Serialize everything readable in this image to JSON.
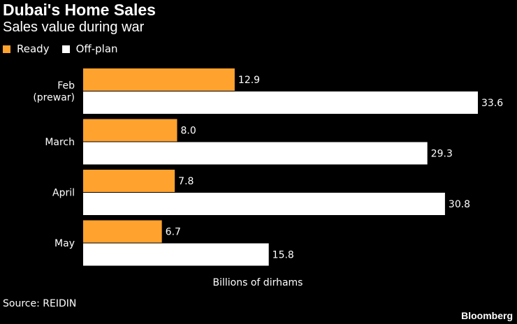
{
  "title": "Dubai's Home Sales",
  "subtitle": "Sales value during war",
  "legend": [
    {
      "label": "Ready",
      "color": "#FFA22E"
    },
    {
      "label": "Off-plan",
      "color": "#FFFFFF"
    }
  ],
  "source": "Source: REIDIN",
  "brand": "Bloomberg",
  "chart_data": {
    "type": "bar",
    "orientation": "horizontal",
    "categories": [
      [
        "Feb",
        "(prewar)"
      ],
      [
        "March"
      ],
      [
        "April"
      ],
      [
        "May"
      ]
    ],
    "series": [
      {
        "name": "Ready",
        "color": "#FFA22E",
        "values": [
          12.9,
          8.0,
          7.8,
          6.7
        ]
      },
      {
        "name": "Off-plan",
        "color": "#FFFFFF",
        "values": [
          33.6,
          29.3,
          30.8,
          15.8
        ]
      }
    ],
    "value_labels": [
      [
        "12.9",
        "8.0",
        "7.8",
        "6.7"
      ],
      [
        "33.6",
        "29.3",
        "30.8",
        "15.8"
      ]
    ],
    "xlabel": "Billions of dirhams",
    "xlim": [
      0,
      33.6
    ],
    "grid": false,
    "legend_position": "top-left"
  }
}
